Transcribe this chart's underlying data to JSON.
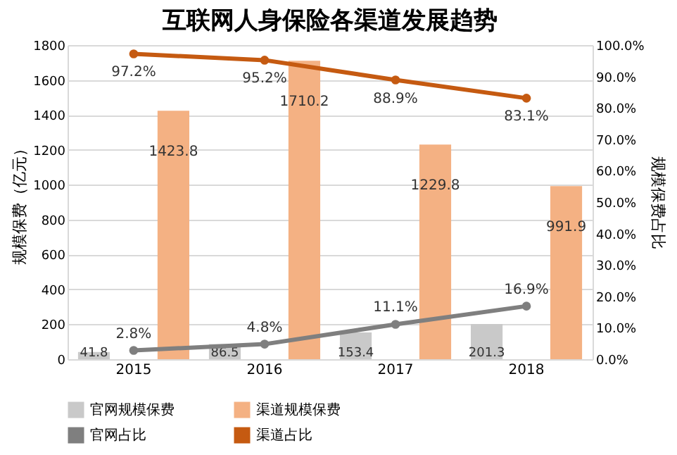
{
  "chart_data": {
    "type": "bar",
    "title": "互联网人身保险各渠道发展趋势",
    "categories": [
      "2015",
      "2016",
      "2017",
      "2018"
    ],
    "ylabel": "规模保费（亿元）",
    "y2label": "规模保费占比",
    "ylim": [
      0,
      1800
    ],
    "yticks": [
      0,
      200,
      400,
      600,
      800,
      1000,
      1200,
      1400,
      1600,
      1800
    ],
    "y2lim": [
      0,
      100
    ],
    "y2ticks": [
      {
        "value": 0,
        "label": "0.0%"
      },
      {
        "value": 10,
        "label": "10.0%"
      },
      {
        "value": 20,
        "label": "20.0%"
      },
      {
        "value": 30,
        "label": "30.0%"
      },
      {
        "value": 40,
        "label": "40.0%"
      },
      {
        "value": 50,
        "label": "50.0%"
      },
      {
        "value": 60,
        "label": "60.0%"
      },
      {
        "value": 70,
        "label": "70.0%"
      },
      {
        "value": 80,
        "label": "80.0%"
      },
      {
        "value": 90,
        "label": "90.0%"
      },
      {
        "value": 100,
        "label": "100.0%"
      }
    ],
    "grid": "y",
    "legend": "bottom",
    "marker": "circle",
    "series": [
      {
        "name": "官网规模保费",
        "type": "bar",
        "color": "#c9c9c9",
        "values": [
          41.8,
          86.5,
          153.4,
          201.3
        ],
        "value_labels": [
          "41.8",
          "86.5",
          "153.4",
          "201.3"
        ]
      },
      {
        "name": "渠道规模保费",
        "type": "bar",
        "color": "#f4b183",
        "values": [
          1423.8,
          1710.2,
          1229.8,
          991.9
        ],
        "value_labels": [
          "1423.8",
          "1710.2",
          "1229.8",
          "991.9"
        ]
      },
      {
        "name": "官网占比",
        "type": "line",
        "axis": "y2",
        "color": "#7f7f7f",
        "values": [
          2.8,
          4.8,
          11.1,
          16.9
        ],
        "value_labels": [
          "2.8%",
          "4.8%",
          "11.1%",
          "16.9%"
        ]
      },
      {
        "name": "渠道占比",
        "type": "line",
        "axis": "y2",
        "color": "#c55a11",
        "values": [
          97.2,
          95.2,
          88.9,
          83.1
        ],
        "value_labels": [
          "97.2%",
          "95.2%",
          "88.9%",
          "83.1%"
        ]
      }
    ]
  }
}
